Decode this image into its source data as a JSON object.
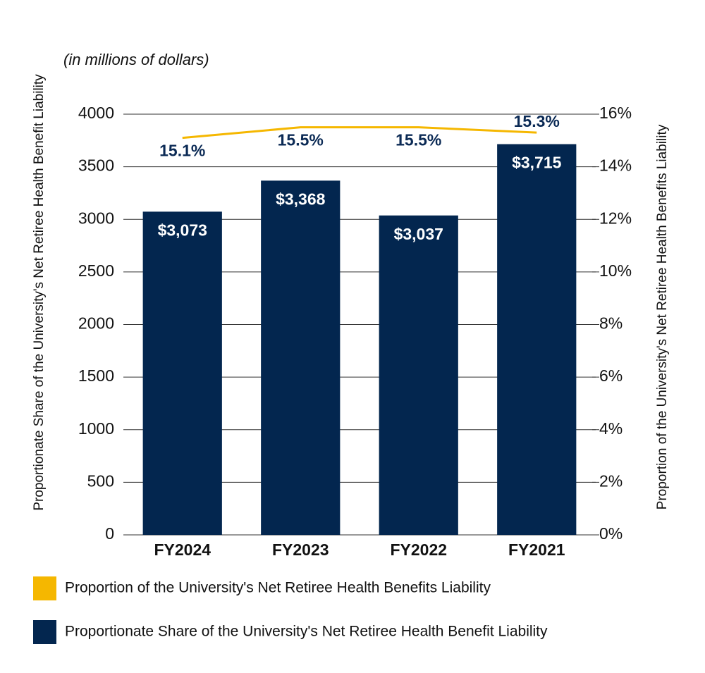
{
  "chart_data": {
    "type": "bar",
    "subtitle": "(in millions of dollars)",
    "y_label": "Proportionate Share of the University's Net Retiree Health Benefit Liability",
    "y2_label": "Proportion of the University's Net Retiree Health Benefits Liability",
    "categories": [
      "FY2024",
      "FY2023",
      "FY2022",
      "FY2021"
    ],
    "series": [
      {
        "name": "Proportion of the University's Net Retiree Health Benefits Liability",
        "type": "line",
        "axis": "y2",
        "color": "#f5b700",
        "values": [
          15.1,
          15.5,
          15.5,
          15.3
        ],
        "value_labels": [
          "15.1%",
          "15.5%",
          "15.5%",
          "15.3%"
        ]
      },
      {
        "name": "Proportionate Share of the University's Net Retiree Health Benefit Liability",
        "type": "bar",
        "color": "#03264f",
        "values": [
          3073,
          3368,
          3037,
          3715
        ],
        "value_labels": [
          "$3,073",
          "$3,368",
          "$3,037",
          "$3,715"
        ]
      }
    ],
    "ylim": [
      0,
      4000
    ],
    "yticks": [
      0,
      500,
      1000,
      1500,
      2000,
      2500,
      3000,
      3500,
      4000
    ],
    "y2lim": [
      0,
      16
    ],
    "y2ticks": [
      {
        "value": 0,
        "label": "0%"
      },
      {
        "value": 2,
        "label": "2%"
      },
      {
        "value": 4,
        "label": "4%"
      },
      {
        "value": 6,
        "label": "6%"
      },
      {
        "value": 8,
        "label": "8%"
      },
      {
        "value": 10,
        "label": "10%"
      },
      {
        "value": 12,
        "label": "12%"
      },
      {
        "value": 14,
        "label": "14%"
      },
      {
        "value": 16,
        "label": "16%"
      }
    ],
    "grid": true
  }
}
